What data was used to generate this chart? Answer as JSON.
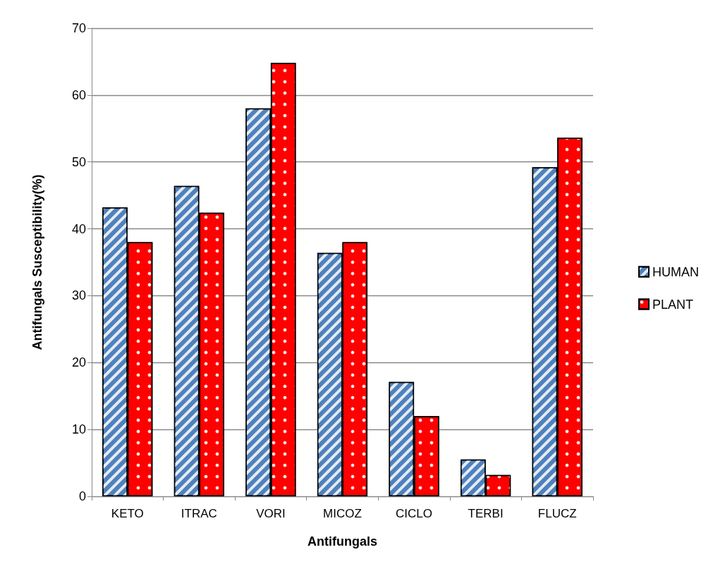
{
  "chart_data": {
    "type": "bar",
    "xlabel": "Antifungals",
    "ylabel": "Antifungals Susceptibility(%)",
    "categories": [
      "KETO",
      "ITRAC",
      "VORI",
      "MICOZ",
      "CICLO",
      "TERBI",
      "FLUCZ"
    ],
    "series": [
      {
        "name": "HUMAN",
        "color": "#4f81bd",
        "values": [
          43.2,
          46.4,
          58.0,
          36.4,
          17.1,
          5.5,
          49.2
        ]
      },
      {
        "name": "PLANT",
        "color": "#ff0000",
        "values": [
          38.0,
          42.4,
          64.8,
          38.0,
          12.0,
          3.2,
          53.6
        ]
      }
    ],
    "ylim": [
      0,
      70
    ],
    "yticks": [
      0,
      10,
      20,
      30,
      40,
      50,
      60,
      70
    ],
    "grid": "y",
    "legend": "right"
  }
}
